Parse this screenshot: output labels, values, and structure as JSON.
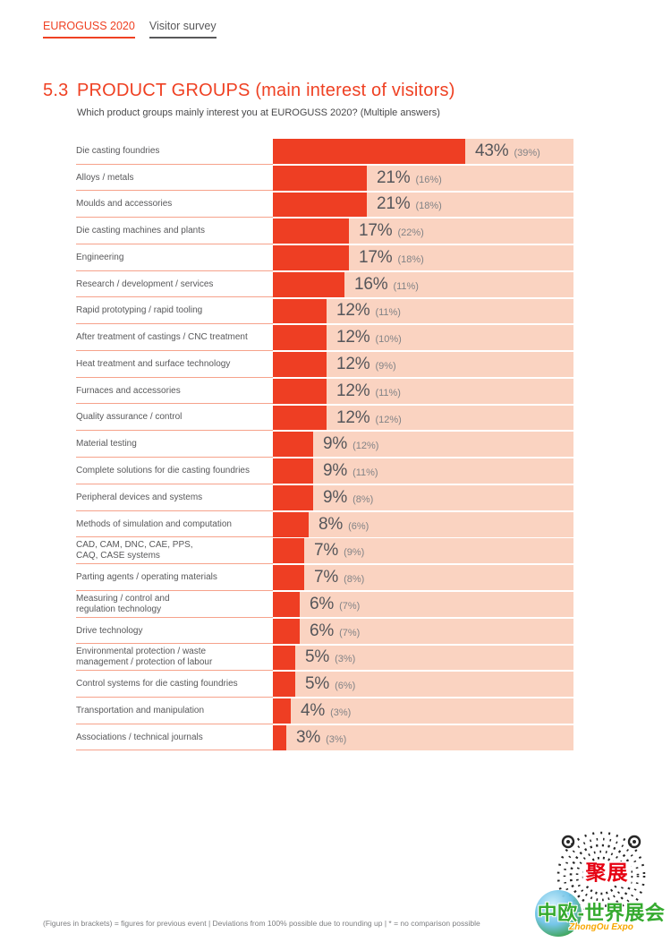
{
  "header": {
    "brand": "EUROGUSS 2020",
    "survey": "Visitor survey"
  },
  "title": {
    "number": "5.3",
    "text": "PRODUCT GROUPS (main interest of visitors)",
    "question": "Which product groups mainly interest you at EUROGUSS 2020? (Multiple answers)"
  },
  "footnote": "(Figures in brackets) = figures for previous event | Deviations from 100% possible due to rounding up | * = no comparison possible",
  "logo": {
    "badge": "聚展",
    "name": "中欧-世界展会",
    "subname": "ZhongOu Expo"
  },
  "chart_data": {
    "type": "bar",
    "orientation": "horizontal",
    "title": "5.3 PRODUCT GROUPS (main interest of visitors)",
    "subtitle": "Which product groups mainly interest you at EUROGUSS 2020? (Multiple answers)",
    "unit": "%",
    "xlim": [
      0,
      67
    ],
    "grid": false,
    "legend": false,
    "value_labels": "percent followed by previous event value in brackets",
    "colors": {
      "bar": "#ee3e23",
      "track": "#fad3c1",
      "label_rule": "#f6a28b"
    },
    "categories": [
      "Die casting foundries",
      "Alloys / metals",
      "Moulds and accessories",
      "Die casting machines and plants",
      "Engineering",
      "Research / development / services",
      "Rapid prototyping / rapid tooling",
      "After treatment of castings / CNC treatment",
      "Heat treatment and surface technology",
      "Furnaces and accessories",
      "Quality assurance / control",
      "Material testing",
      "Complete solutions for die casting foundries",
      "Peripheral devices and systems",
      "Methods of simulation and computation",
      "CAD, CAM, DNC, CAE, PPS,\nCAQ, CASE systems",
      "Parting agents / operating materials",
      "Measuring / control and\nregulation technology",
      "Drive technology",
      "Environmental protection / waste\nmanagement / protection of labour",
      "Control systems for die casting foundries",
      "Transportation and manipulation",
      "Associations / technical journals"
    ],
    "series": [
      {
        "name": "EUROGUSS 2020",
        "values": [
          43,
          21,
          21,
          17,
          17,
          16,
          12,
          12,
          12,
          12,
          12,
          9,
          9,
          9,
          8,
          7,
          7,
          6,
          6,
          5,
          5,
          4,
          3
        ]
      },
      {
        "name": "previous event (figures in brackets)",
        "values": [
          39,
          16,
          18,
          22,
          18,
          11,
          11,
          10,
          9,
          11,
          12,
          12,
          11,
          8,
          6,
          9,
          8,
          7,
          7,
          3,
          6,
          3,
          3
        ]
      }
    ]
  }
}
